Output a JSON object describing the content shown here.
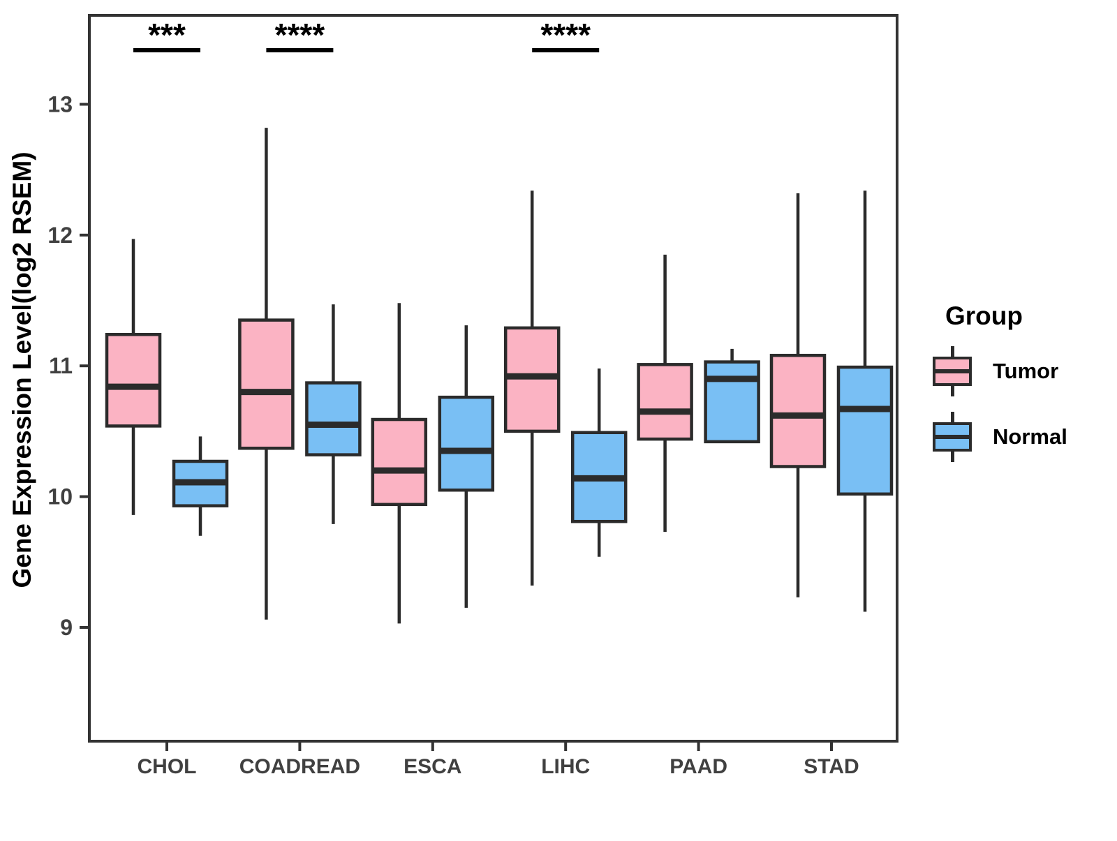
{
  "legend": {
    "title": "Group",
    "items": [
      {
        "label": "Tumor",
        "color": "#FBB3C3"
      },
      {
        "label": "Normal",
        "color": "#79BFF4"
      }
    ]
  },
  "chart_data": {
    "type": "boxplot",
    "title": "",
    "xlabel": "",
    "ylabel": "Gene Expression Level(log2 RSEM)",
    "ylim": [
      8.13,
      13.68
    ],
    "yticks": [
      9,
      10,
      11,
      12,
      13
    ],
    "grid": false,
    "legend_position": "right",
    "categories": [
      "CHOL",
      "COADREAD",
      "ESCA",
      "LIHC",
      "PAAD",
      "STAD"
    ],
    "groups": [
      "Tumor",
      "Normal"
    ],
    "colors": {
      "Tumor": "#FBB3C3",
      "Normal": "#79BFF4",
      "outline": "#2B2B2B",
      "axis": "#333333",
      "tick_text": "#404040"
    },
    "series": [
      {
        "name": "Tumor",
        "boxes": [
          {
            "category": "CHOL",
            "whisker_low": 9.86,
            "q1": 10.54,
            "median": 10.84,
            "q3": 11.24,
            "whisker_high": 11.97
          },
          {
            "category": "COADREAD",
            "whisker_low": 9.06,
            "q1": 10.37,
            "median": 10.8,
            "q3": 11.35,
            "whisker_high": 12.82
          },
          {
            "category": "ESCA",
            "whisker_low": 9.03,
            "q1": 9.94,
            "median": 10.2,
            "q3": 10.59,
            "whisker_high": 11.48
          },
          {
            "category": "LIHC",
            "whisker_low": 9.32,
            "q1": 10.5,
            "median": 10.92,
            "q3": 11.29,
            "whisker_high": 12.34
          },
          {
            "category": "PAAD",
            "whisker_low": 9.73,
            "q1": 10.44,
            "median": 10.65,
            "q3": 11.01,
            "whisker_high": 11.85
          },
          {
            "category": "STAD",
            "whisker_low": 9.23,
            "q1": 10.23,
            "median": 10.62,
            "q3": 11.08,
            "whisker_high": 12.32
          }
        ]
      },
      {
        "name": "Normal",
        "boxes": [
          {
            "category": "CHOL",
            "whisker_low": 9.7,
            "q1": 9.93,
            "median": 10.11,
            "q3": 10.27,
            "whisker_high": 10.46
          },
          {
            "category": "COADREAD",
            "whisker_low": 9.79,
            "q1": 10.32,
            "median": 10.55,
            "q3": 10.87,
            "whisker_high": 11.47
          },
          {
            "category": "ESCA",
            "whisker_low": 9.15,
            "q1": 10.05,
            "median": 10.35,
            "q3": 10.76,
            "whisker_high": 11.31
          },
          {
            "category": "LIHC",
            "whisker_low": 9.54,
            "q1": 9.81,
            "median": 10.14,
            "q3": 10.49,
            "whisker_high": 10.98
          },
          {
            "category": "PAAD",
            "whisker_low": 10.42,
            "q1": 10.42,
            "median": 10.9,
            "q3": 11.03,
            "whisker_high": 11.13
          },
          {
            "category": "STAD",
            "whisker_low": 9.12,
            "q1": 10.02,
            "median": 10.67,
            "q3": 10.99,
            "whisker_high": 12.34
          }
        ]
      }
    ],
    "significance": [
      {
        "category": "CHOL",
        "label": "***"
      },
      {
        "category": "COADREAD",
        "label": "****"
      },
      {
        "category": "LIHC",
        "label": "****"
      }
    ]
  }
}
